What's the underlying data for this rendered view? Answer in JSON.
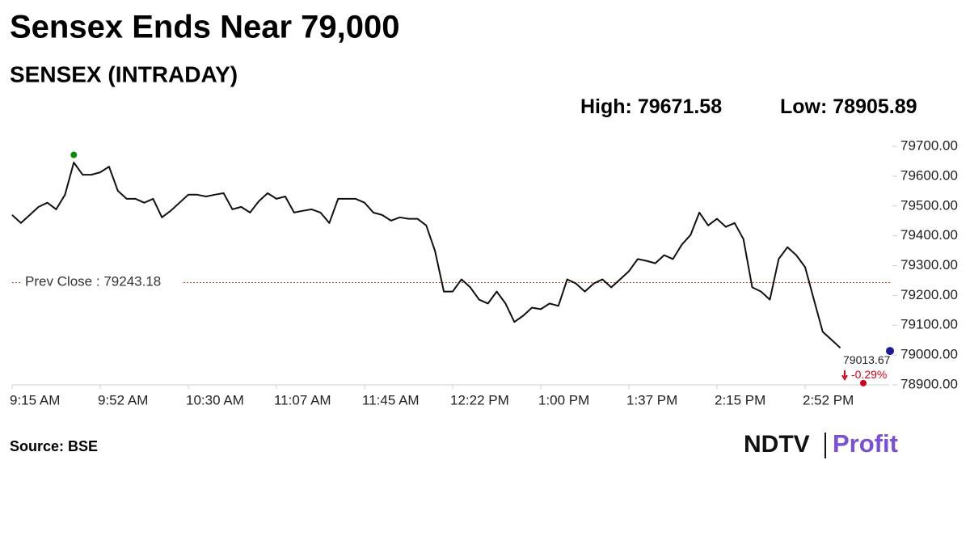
{
  "chart_data": {
    "type": "line",
    "title": "Sensex Ends Near 79,000",
    "subtitle": "SENSEX (INTRADAY)",
    "high": {
      "label": "High:",
      "value": 79671.58,
      "color": "#0a8a0a"
    },
    "low": {
      "label": "Low:",
      "value": 78905.89,
      "color": "#d0021b"
    },
    "prev_close": {
      "label": "Prev Close :",
      "value": 79243.18,
      "color": "#c0392b"
    },
    "last_value": {
      "value": 79013.67,
      "color": "#1a1a9a"
    },
    "change": {
      "label": "-0.29%",
      "color": "#d0021b"
    },
    "categories": [
      "9:15 AM",
      null,
      null,
      null,
      null,
      null,
      null,
      null,
      null,
      null,
      "9:52 AM",
      null,
      null,
      null,
      null,
      null,
      null,
      null,
      null,
      null,
      "10:30 AM",
      null,
      null,
      null,
      null,
      null,
      null,
      null,
      null,
      null,
      "11:07 AM",
      null,
      null,
      null,
      null,
      null,
      null,
      null,
      null,
      null,
      "11:45 AM",
      null,
      null,
      null,
      null,
      null,
      null,
      null,
      null,
      null,
      "12:22 PM",
      null,
      null,
      null,
      null,
      null,
      null,
      null,
      null,
      null,
      "1:00 PM",
      null,
      null,
      null,
      null,
      null,
      null,
      null,
      null,
      null,
      "1:37 PM",
      null,
      null,
      null,
      null,
      null,
      null,
      null,
      null,
      null,
      "2:15 PM",
      null,
      null,
      null,
      null,
      null,
      null,
      null,
      null,
      null,
      "2:52 PM",
      null,
      null,
      null,
      null,
      null,
      null,
      null,
      null,
      null,
      null
    ],
    "series": [
      {
        "name": "SENSEX",
        "color": "#111111",
        "values": [
          79470,
          79443,
          79470,
          79497,
          79511,
          79489,
          79538,
          79646,
          79605,
          79605,
          79613,
          79632,
          79551,
          79524,
          79524,
          79511,
          79524,
          79462,
          79484,
          79511,
          79538,
          79538,
          79532,
          79538,
          79543,
          79489,
          79497,
          79478,
          79516,
          79543,
          79524,
          79532,
          79478,
          79484,
          79489,
          79478,
          79443,
          79524,
          79524,
          79524,
          79511,
          79478,
          79470,
          79451,
          79462,
          79457,
          79457,
          79435,
          79349,
          79213,
          79213,
          79254,
          79227,
          79186,
          79173,
          79213,
          79173,
          79111,
          79132,
          79159,
          79154,
          79173,
          79165,
          79254,
          79240,
          79213,
          79240,
          79254,
          79227,
          79254,
          79281,
          79322,
          79316,
          79308,
          79335,
          79322,
          79370,
          79403,
          79478,
          79435,
          79457,
          79430,
          79443,
          79389,
          79227,
          79213,
          79186,
          79322,
          79362,
          79335,
          79295,
          79186,
          79078,
          79051,
          79024,
          null,
          null,
          null,
          null,
          null,
          null
        ]
      }
    ],
    "ylim": [
      78900,
      79730
    ],
    "yticks": [
      {
        "value": 78900,
        "label": "78900.00"
      },
      {
        "value": 79000,
        "label": "79000.00"
      },
      {
        "value": 79100,
        "label": "79100.00"
      },
      {
        "value": 79200,
        "label": "79200.00"
      },
      {
        "value": 79300,
        "label": "79300.00"
      },
      {
        "value": 79400,
        "label": "79400.00"
      },
      {
        "value": 79500,
        "label": "79500.00"
      },
      {
        "value": 79600,
        "label": "79600.00"
      },
      {
        "value": 79700,
        "label": "79700.00"
      }
    ],
    "source": "Source: BSE",
    "logo": {
      "left": "NDTV",
      "right": "Profit"
    }
  }
}
